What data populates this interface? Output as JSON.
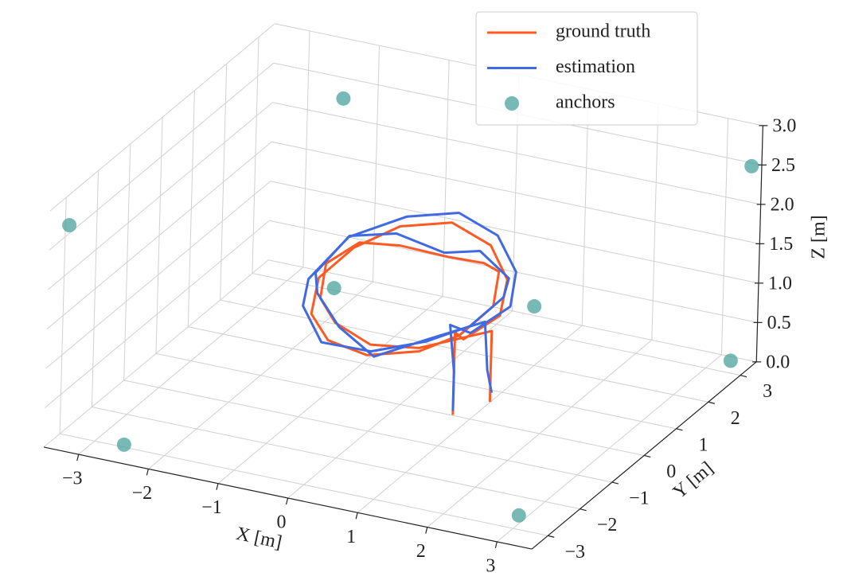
{
  "chart_data": {
    "type": "trajectory3d",
    "xlabel": "X [m]",
    "ylabel": "Y [m]",
    "zlabel": "Z [m]",
    "xlim": [
      -3.5,
      3.5
    ],
    "ylim": [
      -3.5,
      3.5
    ],
    "zlim": [
      0,
      3
    ],
    "xticks": [
      {
        "value": -3,
        "label": "−3"
      },
      {
        "value": -2,
        "label": "−2"
      },
      {
        "value": -1,
        "label": "−1"
      },
      0,
      1,
      2,
      3
    ],
    "yticks": [
      {
        "value": -3,
        "label": "−3"
      },
      {
        "value": -2,
        "label": "−2"
      },
      {
        "value": -1,
        "label": "−1"
      },
      0,
      1,
      2,
      3
    ],
    "zticks": [
      {
        "value": 0,
        "label": "0.0"
      },
      0.5,
      {
        "value": 1,
        "label": "1.0"
      },
      1.5,
      {
        "value": 2,
        "label": "2.0"
      },
      2.5,
      {
        "value": 3,
        "label": "3.0"
      }
    ],
    "grid": true,
    "legend": "upper right",
    "series": [
      {
        "name": "ground truth",
        "kind": "line",
        "color": "#ff5a24",
        "x": [
          0.8,
          0.8,
          0.8,
          1.1,
          1.3,
          1.1,
          0.65,
          0,
          -0.65,
          -1.1,
          -1.3,
          -1.1,
          -0.65,
          0,
          0.65,
          1.0,
          1.2,
          1.0,
          0.6,
          0,
          -0.6,
          -1.0,
          -1.2,
          -1.0,
          -0.6,
          0,
          0.6,
          1.1,
          1.1,
          1.1
        ],
        "y": [
          -0.1,
          -0.1,
          -0.1,
          -0.5,
          0.2,
          0.85,
          1.3,
          1.5,
          1.3,
          0.85,
          0.2,
          -0.45,
          -0.9,
          -1.1,
          -0.9,
          -0.4,
          0.2,
          0.8,
          1.2,
          1.4,
          1.2,
          0.8,
          0.2,
          -0.4,
          -0.8,
          -1.0,
          -0.8,
          0.4,
          0.4,
          0.4
        ],
        "z": [
          0.05,
          0.6,
          1.1,
          1.2,
          1.3,
          1.5,
          1.7,
          1.8,
          1.7,
          1.5,
          1.3,
          1.1,
          1.0,
          1.0,
          1.1,
          1.2,
          1.4,
          1.6,
          1.5,
          1.4,
          1.5,
          1.6,
          1.5,
          1.3,
          1.2,
          1.1,
          1.1,
          1.0,
          0.5,
          0.1
        ]
      },
      {
        "name": "estimation",
        "kind": "line",
        "color": "#4169e1",
        "x": [
          0.8,
          0.8,
          0.75,
          1.2,
          1.4,
          1.2,
          0.7,
          0.05,
          -0.6,
          -1.2,
          -1.4,
          -1.2,
          -0.7,
          0.1,
          0.7,
          1.1,
          1.3,
          1.1,
          0.5,
          -0.1,
          -0.7,
          -1.1,
          -1.3,
          -1.0,
          -0.5,
          0.1,
          0.7,
          1.0,
          1.05,
          1.1
        ],
        "y": [
          -0.1,
          -0.1,
          -0.15,
          -0.5,
          0.3,
          0.9,
          1.4,
          1.6,
          1.4,
          0.9,
          0.1,
          -0.5,
          -1.0,
          -1.2,
          -0.8,
          -0.3,
          0.3,
          0.9,
          1.3,
          1.5,
          1.3,
          0.7,
          0.1,
          -0.5,
          -0.9,
          -1.1,
          -0.7,
          0.4,
          0.4,
          0.45
        ],
        "z": [
          0.1,
          0.6,
          1.2,
          1.3,
          1.4,
          1.6,
          1.8,
          1.9,
          1.8,
          1.6,
          1.3,
          1.2,
          1.0,
          1.1,
          1.2,
          1.3,
          1.5,
          1.5,
          1.6,
          1.4,
          1.6,
          1.7,
          1.4,
          1.4,
          1.2,
          1.0,
          1.2,
          1.1,
          0.5,
          0.2
        ]
      },
      {
        "name": "anchors",
        "kind": "scatter",
        "color": "#4aa39c",
        "x": [
          -2.4,
          3.1,
          3.4,
          0.4,
          -3.4,
          -2.0,
          3.4,
          -1.3
        ],
        "y": [
          -3.4,
          -3.05,
          2.9,
          3.3,
          -3.1,
          2.4,
          3.4,
          0.7
        ],
        "z": [
          0.2,
          0.2,
          0.2,
          0.2,
          2.7,
          2.7,
          2.5,
          1.0
        ]
      }
    ]
  }
}
